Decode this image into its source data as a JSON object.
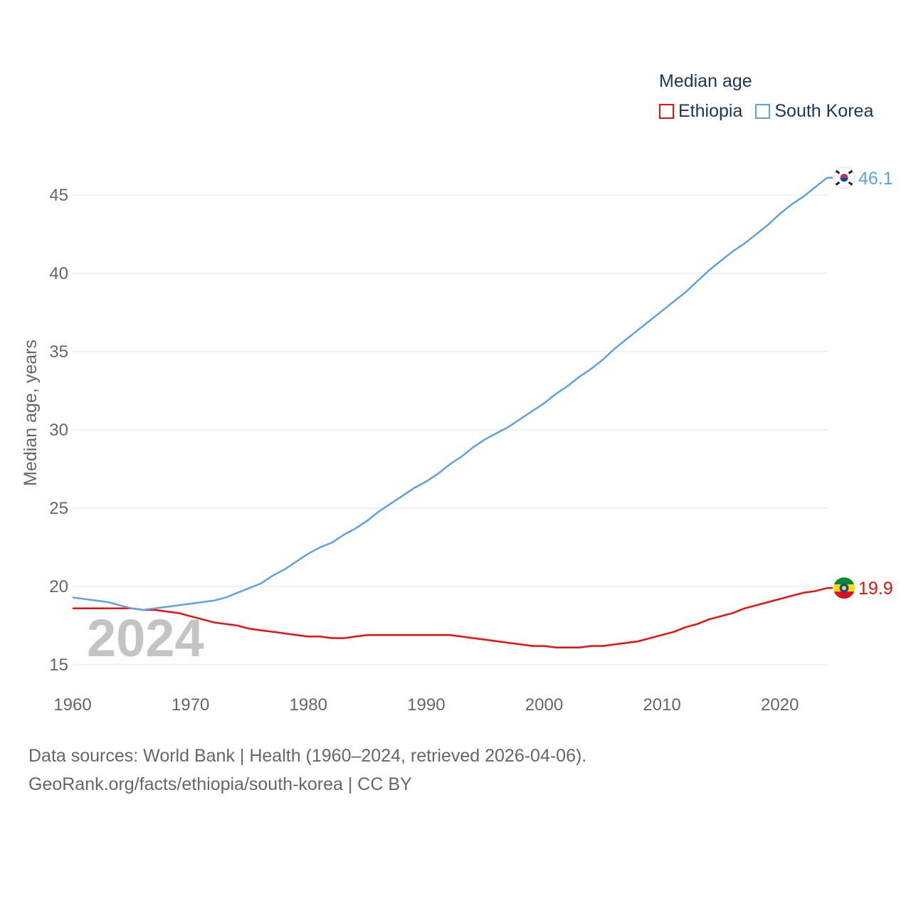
{
  "legend": {
    "title": "Median age"
  },
  "chart_data": {
    "type": "line",
    "title": "Median age",
    "xlabel": "",
    "ylabel": "Median age, years",
    "xlim": [
      1960,
      2024
    ],
    "ylim": [
      15,
      46.5
    ],
    "yticks": [
      15,
      20,
      25,
      30,
      35,
      40,
      45
    ],
    "xticks": [
      1960,
      1970,
      1980,
      1990,
      2000,
      2010,
      2020
    ],
    "year_watermark": "2024",
    "x": [
      1960,
      1961,
      1962,
      1963,
      1964,
      1965,
      1966,
      1967,
      1968,
      1969,
      1970,
      1971,
      1972,
      1973,
      1974,
      1975,
      1976,
      1977,
      1978,
      1979,
      1980,
      1981,
      1982,
      1983,
      1984,
      1985,
      1986,
      1987,
      1988,
      1989,
      1990,
      1991,
      1992,
      1993,
      1994,
      1995,
      1996,
      1997,
      1998,
      1999,
      2000,
      2001,
      2002,
      2003,
      2004,
      2005,
      2006,
      2007,
      2008,
      2009,
      2010,
      2011,
      2012,
      2013,
      2014,
      2015,
      2016,
      2017,
      2018,
      2019,
      2020,
      2021,
      2022,
      2023,
      2024
    ],
    "series": [
      {
        "name": "Ethiopia",
        "color": "#e8110f",
        "end_label": "19.9",
        "flag": "ethiopia-flag",
        "values": [
          18.6,
          18.6,
          18.6,
          18.6,
          18.6,
          18.6,
          18.5,
          18.5,
          18.4,
          18.3,
          18.1,
          17.9,
          17.7,
          17.6,
          17.5,
          17.3,
          17.2,
          17.1,
          17.0,
          16.9,
          16.8,
          16.8,
          16.7,
          16.7,
          16.8,
          16.9,
          16.9,
          16.9,
          16.9,
          16.9,
          16.9,
          16.9,
          16.9,
          16.8,
          16.7,
          16.6,
          16.5,
          16.4,
          16.3,
          16.2,
          16.2,
          16.1,
          16.1,
          16.1,
          16.2,
          16.2,
          16.3,
          16.4,
          16.5,
          16.7,
          16.9,
          17.1,
          17.4,
          17.6,
          17.9,
          18.1,
          18.3,
          18.6,
          18.8,
          19.0,
          19.2,
          19.4,
          19.6,
          19.7,
          19.9
        ]
      },
      {
        "name": "South Korea",
        "color": "#5fa2e2",
        "end_label": "46.1",
        "flag": "south-korea-flag",
        "values": [
          19.3,
          19.2,
          19.1,
          19.0,
          18.8,
          18.6,
          18.5,
          18.6,
          18.7,
          18.8,
          18.9,
          19.0,
          19.1,
          19.3,
          19.6,
          19.9,
          20.2,
          20.7,
          21.1,
          21.6,
          22.1,
          22.5,
          22.8,
          23.3,
          23.7,
          24.2,
          24.8,
          25.3,
          25.8,
          26.3,
          26.7,
          27.2,
          27.8,
          28.3,
          28.9,
          29.4,
          29.8,
          30.2,
          30.7,
          31.2,
          31.7,
          32.3,
          32.8,
          33.4,
          33.9,
          34.5,
          35.2,
          35.8,
          36.4,
          37.0,
          37.6,
          38.2,
          38.8,
          39.5,
          40.2,
          40.8,
          41.4,
          41.9,
          42.5,
          43.1,
          43.8,
          44.4,
          44.9,
          45.5,
          46.1
        ]
      }
    ]
  },
  "sources": {
    "line1": "Data sources: World Bank | Health (1960–2024, retrieved 2026-04-06).",
    "line2": "GeoRank.org/facts/ethiopia/south-korea | CC BY"
  }
}
